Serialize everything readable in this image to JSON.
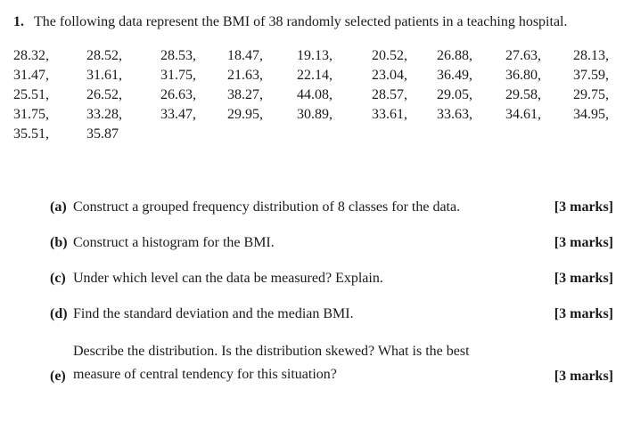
{
  "page": {
    "background": "#ffffff",
    "text_color": "#1a1a1a"
  },
  "intro": {
    "number": "1.",
    "text": "The following data represent the BMI of 38 randomly selected patients in a teaching hospital."
  },
  "data_rows": [
    [
      "28.32,",
      "28.52,",
      "28.53,",
      "18.47,",
      "19.13,",
      "20.52,",
      "26.88,",
      "27.63,",
      "28.13,"
    ],
    [
      "31.47,",
      "31.61,",
      "31.75,",
      "21.63,",
      "22.14,",
      "23.04,",
      "36.49,",
      "36.80,",
      "37.59,"
    ],
    [
      "25.51,",
      "26.52,",
      "26.63,",
      "38.27,",
      "44.08,",
      "28.57,",
      "29.05,",
      "29.58,",
      "29.75,"
    ],
    [
      "31.75,",
      "33.28,",
      "33.47,",
      "29.95,",
      "30.89,",
      "33.61,",
      "33.63,",
      "34.61,",
      "34.95,"
    ],
    [
      "35.51,",
      "35.87"
    ]
  ],
  "questions": [
    {
      "label": "(a)",
      "text": "Construct a grouped frequency distribution of 8 classes for the data.",
      "marks": "[3 marks]"
    },
    {
      "label": "(b)",
      "text": "Construct a histogram for the BMI.",
      "marks": "[3 marks]"
    },
    {
      "label": "(c)",
      "text": "Under which level can the data be measured? Explain.",
      "marks": "[3 marks]"
    },
    {
      "label": "(d)",
      "text": "Find the standard deviation and the median BMI.",
      "marks": "[3 marks]"
    },
    {
      "label": "(e)",
      "text": "Describe the distribution. Is the distribution skewed? What is the best measure of central tendency for this situation?",
      "marks": "[3 marks]"
    }
  ]
}
